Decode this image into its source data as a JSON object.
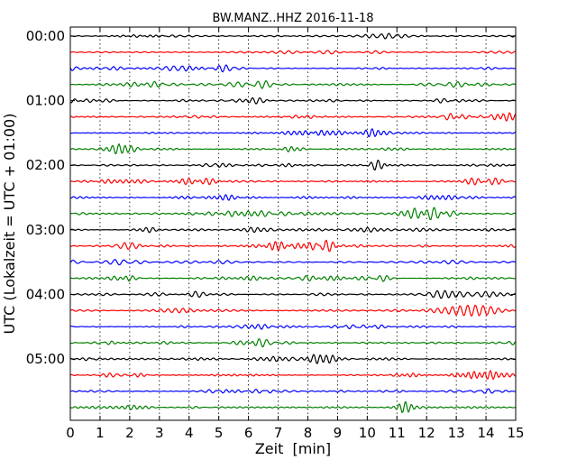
{
  "chart_data": {
    "type": "line",
    "title": "BW.MANZ..HHZ 2016-11-18",
    "xlabel": "Zeit  [min]",
    "ylabel": "UTC (Lokalzeit = UTC + 01:00)",
    "xlim": [
      0,
      15
    ],
    "x_ticks": [
      "0",
      "1",
      "2",
      "3",
      "4",
      "5",
      "6",
      "7",
      "8",
      "9",
      "10",
      "11",
      "12",
      "13",
      "14",
      "15"
    ],
    "y_ticks": [
      "00:00",
      "01:00",
      "02:00",
      "03:00",
      "04:00",
      "05:00"
    ],
    "grid": "vertical dotted at each minute",
    "trace_colors": [
      "#000000",
      "#ff0000",
      "#0000ff",
      "#008000"
    ],
    "traces": [
      {
        "start": "00:00",
        "color": "#000000"
      },
      {
        "start": "00:15",
        "color": "#ff0000"
      },
      {
        "start": "00:30",
        "color": "#0000ff"
      },
      {
        "start": "00:45",
        "color": "#008000"
      },
      {
        "start": "01:00",
        "color": "#000000"
      },
      {
        "start": "01:15",
        "color": "#ff0000"
      },
      {
        "start": "01:30",
        "color": "#0000ff"
      },
      {
        "start": "01:45",
        "color": "#008000"
      },
      {
        "start": "02:00",
        "color": "#000000"
      },
      {
        "start": "02:15",
        "color": "#ff0000"
      },
      {
        "start": "02:30",
        "color": "#0000ff"
      },
      {
        "start": "02:45",
        "color": "#008000"
      },
      {
        "start": "03:00",
        "color": "#000000"
      },
      {
        "start": "03:15",
        "color": "#ff0000"
      },
      {
        "start": "03:30",
        "color": "#0000ff"
      },
      {
        "start": "03:45",
        "color": "#008000"
      },
      {
        "start": "04:00",
        "color": "#000000"
      },
      {
        "start": "04:15",
        "color": "#ff0000"
      },
      {
        "start": "04:30",
        "color": "#0000ff"
      },
      {
        "start": "04:45",
        "color": "#008000"
      },
      {
        "start": "05:00",
        "color": "#000000"
      },
      {
        "start": "05:15",
        "color": "#ff0000"
      },
      {
        "start": "05:30",
        "color": "#0000ff"
      },
      {
        "start": "05:45",
        "color": "#008000"
      }
    ]
  }
}
